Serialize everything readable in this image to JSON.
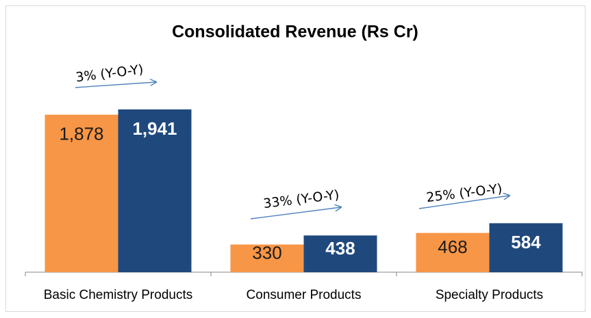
{
  "chart_data": {
    "type": "bar",
    "title": "Consolidated Revenue (Rs Cr)",
    "categories": [
      "Basic Chemistry Products",
      "Consumer Products",
      "Specialty Products"
    ],
    "series": [
      {
        "color": "#f79646",
        "values": [
          1878,
          330,
          468
        ],
        "value_labels": [
          "1,878",
          "330",
          "468"
        ]
      },
      {
        "color": "#1f497d",
        "values": [
          1941,
          438,
          584
        ],
        "value_labels": [
          "1,941",
          "438",
          "584"
        ]
      }
    ],
    "annotations": [
      "3% (Y-O-Y)",
      "33% (Y-O-Y)",
      "25% (Y-O-Y)"
    ]
  }
}
